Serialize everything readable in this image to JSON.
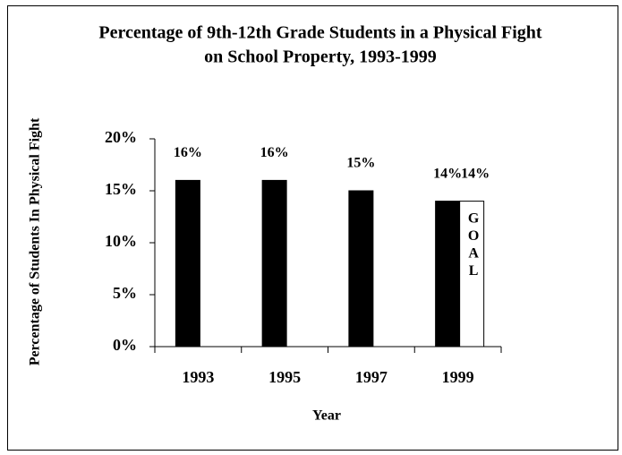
{
  "chart_data": {
    "type": "bar",
    "title": [
      "Percentage of 9th-12th Grade Students in a Physical Fight",
      "on School Property, 1993-1999"
    ],
    "x_label": "Year",
    "y_label": "Percentage of Students In Physical Fight",
    "categories": [
      "1993",
      "1995",
      "1997",
      "1999"
    ],
    "values": [
      16,
      16,
      15,
      14
    ],
    "value_labels": [
      "16%",
      "16%",
      "15%",
      "14%"
    ],
    "color": "#000000",
    "goal_label": "GOAL",
    "goal_values": [
      null,
      null,
      null,
      14
    ],
    "goal_value_labels": [
      null,
      null,
      null,
      "14%"
    ],
    "goal_color": "#ffffff",
    "ylim": [
      0,
      20
    ],
    "yticks": [
      {
        "value": 0,
        "label": "0%"
      },
      {
        "value": 5,
        "label": "5%"
      },
      {
        "value": 10,
        "label": "10%"
      },
      {
        "value": 15,
        "label": "15%"
      },
      {
        "value": 20,
        "label": "20%"
      }
    ]
  }
}
